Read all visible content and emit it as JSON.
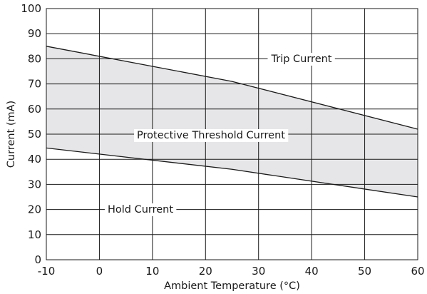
{
  "chart_data": {
    "type": "area",
    "xlabel": "Ambient Temperature (°C)",
    "ylabel": "Current (mA)",
    "xlim": [
      -10,
      60
    ],
    "ylim": [
      0,
      100
    ],
    "x_ticks": [
      "-10",
      "0",
      "10",
      "20",
      "30",
      "40",
      "50",
      "60"
    ],
    "y_ticks": [
      "0",
      "10",
      "20",
      "30",
      "40",
      "50",
      "60",
      "70",
      "80",
      "90",
      "100"
    ],
    "grid": true,
    "fill_color": "#e6e6e8",
    "line_color": "#1a1a1a",
    "series": [
      {
        "name": "Trip Current",
        "x": [
          -10,
          25,
          60
        ],
        "values": [
          85,
          71,
          52
        ]
      },
      {
        "name": "Hold Current",
        "x": [
          -10,
          25,
          60
        ],
        "values": [
          44.5,
          36,
          25
        ]
      }
    ],
    "region_label": "Protective Threshold Current",
    "annotations": {
      "trip": "Trip Current",
      "hold": "Hold Current",
      "region": "Protective Threshold Current"
    }
  }
}
